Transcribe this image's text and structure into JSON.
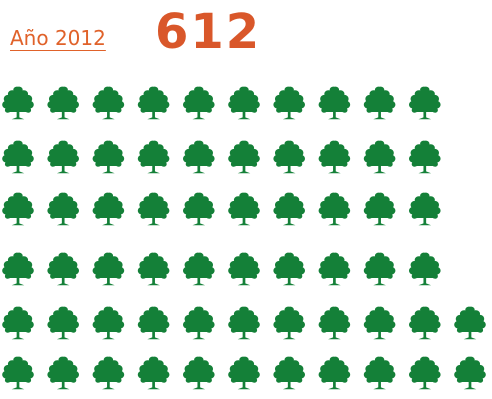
{
  "header": {
    "year_label": "Año 2012",
    "total": "612"
  },
  "colors": {
    "accent": "#d9572a",
    "tree": "#148038",
    "trunk": "#0f6a2e"
  },
  "chart_data": {
    "type": "pictogram",
    "icon": "tree-icon",
    "value": 612,
    "icon_count": 62,
    "rows": [
      10,
      10,
      10,
      10,
      11,
      11
    ]
  }
}
